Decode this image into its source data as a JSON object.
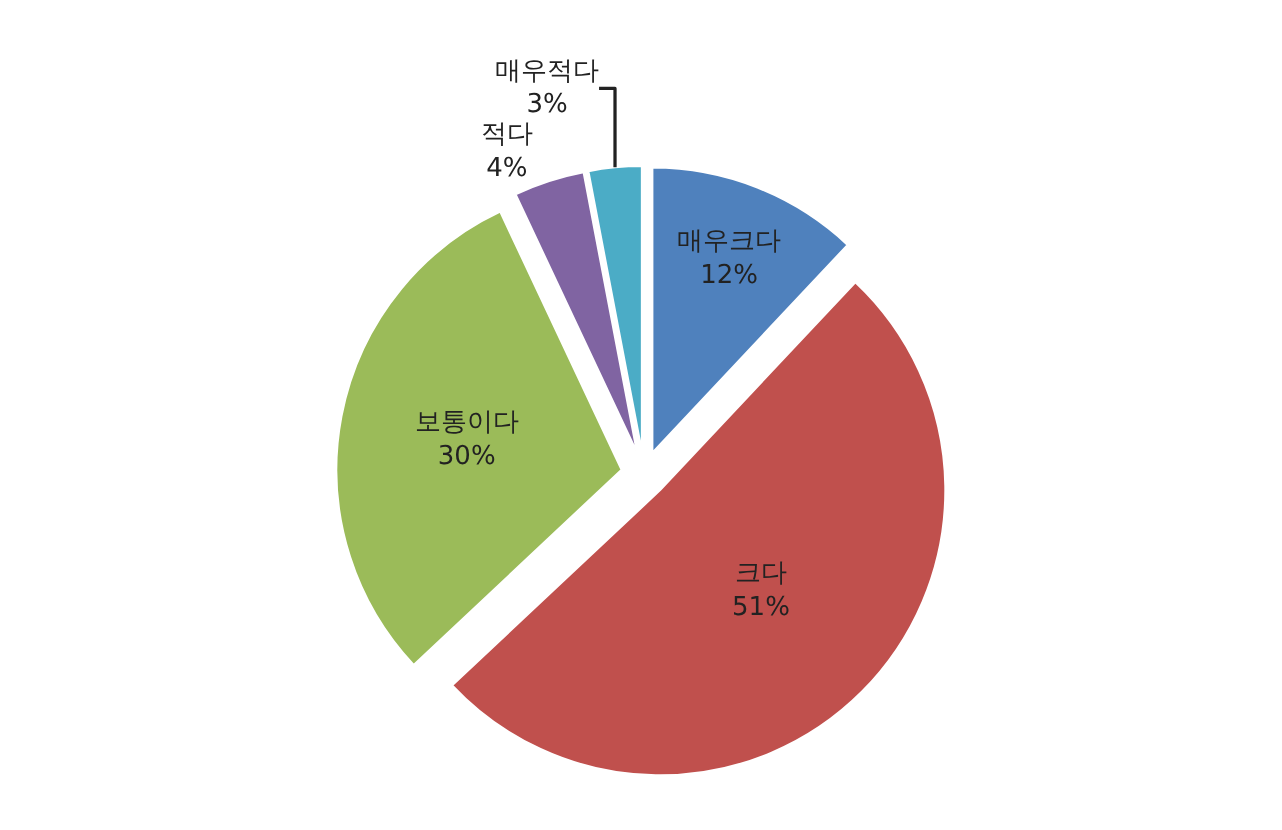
{
  "chart_data": {
    "type": "pie",
    "categories": [
      "매우크다",
      "크다",
      "보통이다",
      "적다",
      "매우적다"
    ],
    "values": [
      12,
      51,
      30,
      4,
      3
    ],
    "colors": [
      "#4f81bd",
      "#c0504d",
      "#9bbb59",
      "#8064a2",
      "#4bacc6"
    ],
    "value_labels": [
      "12%",
      "51%",
      "30%",
      "4%",
      "3%"
    ],
    "legend": false
  }
}
